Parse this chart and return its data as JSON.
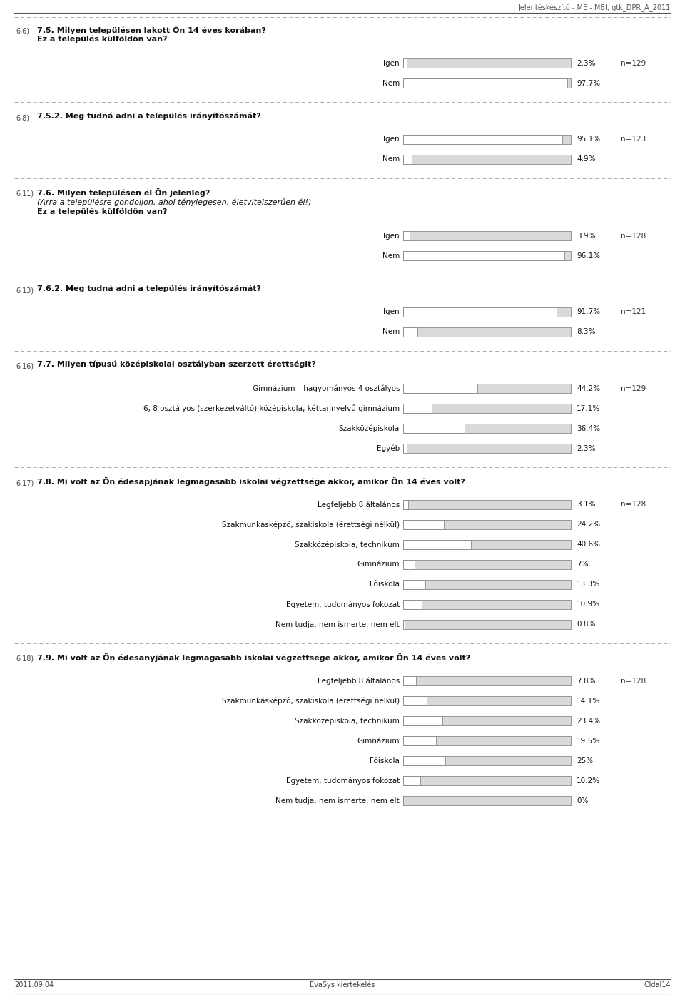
{
  "header_text": "Jelentéskészítő - ME - MBI, gtk_DPR_A_2011",
  "footer_left": "2011.09.04",
  "footer_center": "EvaSys kiértékelés",
  "footer_right": "Oldal14",
  "bg_color": "#ffffff",
  "bar_bg_color": "#d9d9d9",
  "bar_fg_color": "#ffffff",
  "bar_border_color": "#000000",
  "sections": [
    {
      "id": "6.6)",
      "question_lines": [
        "7.5. Milyen településen lakott Ön 14 éves korában?",
        "Ez a település külföldön van?"
      ],
      "question_styles": [
        "bold",
        "bold"
      ],
      "n_label": "n=129",
      "bars": [
        {
          "label": "Igen",
          "value": 2.3,
          "pct": "2.3%"
        },
        {
          "label": "Nem",
          "value": 97.7,
          "pct": "97.7%"
        }
      ]
    },
    {
      "id": "6.8)",
      "question_lines": [
        "7.5.2. Meg tudná adni a település irányítószámát?"
      ],
      "question_styles": [
        "bold"
      ],
      "n_label": "n=123",
      "bars": [
        {
          "label": "Igen",
          "value": 95.1,
          "pct": "95.1%"
        },
        {
          "label": "Nem",
          "value": 4.9,
          "pct": "4.9%"
        }
      ]
    },
    {
      "id": "6.11)",
      "question_lines": [
        "7.6. Milyen településen él Ön jelenleg?",
        "(Arra a településre gondoljon, ahol ténylegesen, életvitelszerűen él!)",
        "Ez a település külföldön van?"
      ],
      "question_styles": [
        "bold",
        "italic",
        "bold"
      ],
      "n_label": "n=128",
      "bars": [
        {
          "label": "Igen",
          "value": 3.9,
          "pct": "3.9%"
        },
        {
          "label": "Nem",
          "value": 96.1,
          "pct": "96.1%"
        }
      ]
    },
    {
      "id": "6.13)",
      "question_lines": [
        "7.6.2. Meg tudná adni a település irányítószámát?"
      ],
      "question_styles": [
        "bold"
      ],
      "n_label": "n=121",
      "bars": [
        {
          "label": "Igen",
          "value": 91.7,
          "pct": "91.7%"
        },
        {
          "label": "Nem",
          "value": 8.3,
          "pct": "8.3%"
        }
      ]
    },
    {
      "id": "6.16)",
      "question_lines": [
        "7.7. Milyen típusú középiskolai osztályban szerzett érettségit?"
      ],
      "question_styles": [
        "bold"
      ],
      "n_label": "n=129",
      "bars": [
        {
          "label": "Gimnázium – hagyományos 4 osztályos",
          "value": 44.2,
          "pct": "44.2%"
        },
        {
          "label": "6, 8 osztályos (szerkezetváltó) középiskola, kéttannyelvű gimnázium",
          "value": 17.1,
          "pct": "17.1%"
        },
        {
          "label": "Szakközépiskola",
          "value": 36.4,
          "pct": "36.4%"
        },
        {
          "label": "Egyéb",
          "value": 2.3,
          "pct": "2.3%"
        }
      ]
    },
    {
      "id": "6.17)",
      "question_lines": [
        "7.8. Mi volt az Ön édesapjának legmagasabb iskolai végzettsége akkor, amikor Ön 14 éves volt?"
      ],
      "question_styles": [
        "bold"
      ],
      "n_label": "n=128",
      "bars": [
        {
          "label": "Legfeljebb 8 általános",
          "value": 3.1,
          "pct": "3.1%"
        },
        {
          "label": "Szakmunkásképző, szakiskola (érettségi nélkül)",
          "value": 24.2,
          "pct": "24.2%"
        },
        {
          "label": "Szakközépiskola, technikum",
          "value": 40.6,
          "pct": "40.6%"
        },
        {
          "label": "Gimnázium",
          "value": 7.0,
          "pct": "7%"
        },
        {
          "label": "Főiskola",
          "value": 13.3,
          "pct": "13.3%"
        },
        {
          "label": "Egyetem, tudományos fokozat",
          "value": 10.9,
          "pct": "10.9%"
        },
        {
          "label": "Nem tudja, nem ismerte, nem élt",
          "value": 0.8,
          "pct": "0.8%"
        }
      ]
    },
    {
      "id": "6.18)",
      "question_lines": [
        "7.9. Mi volt az Ön édesanyjának legmagasabb iskolai végzettsége akkor, amikor Ön 14 éves volt?"
      ],
      "question_styles": [
        "bold"
      ],
      "n_label": "n=128",
      "bars": [
        {
          "label": "Legfeljebb 8 általános",
          "value": 7.8,
          "pct": "7.8%"
        },
        {
          "label": "Szakmunkásképző, szakiskola (érettségi nélkül)",
          "value": 14.1,
          "pct": "14.1%"
        },
        {
          "label": "Szakközépiskola, technikum",
          "value": 23.4,
          "pct": "23.4%"
        },
        {
          "label": "Gimnázium",
          "value": 19.5,
          "pct": "19.5%"
        },
        {
          "label": "Főiskola",
          "value": 25.0,
          "pct": "25%"
        },
        {
          "label": "Egyetem, tudományos fokozat",
          "value": 10.2,
          "pct": "10.2%"
        },
        {
          "label": "Nem tudja, nem ismerte, nem élt",
          "value": 0.0,
          "pct": "0%"
        }
      ]
    }
  ]
}
